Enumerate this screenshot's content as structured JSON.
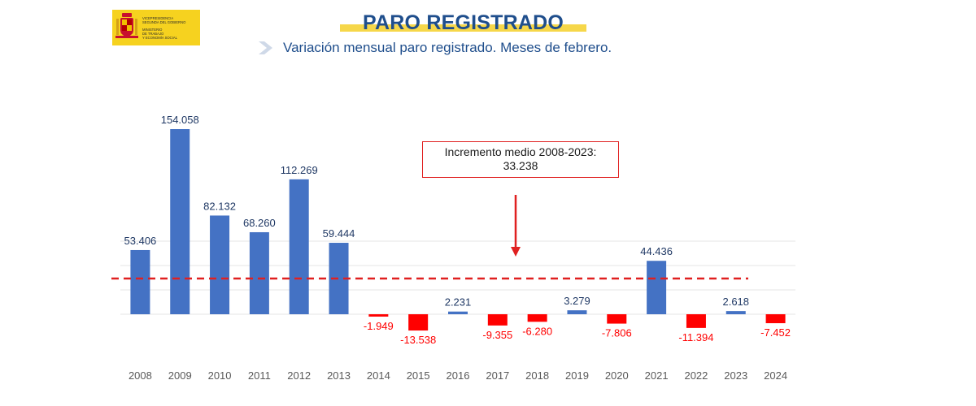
{
  "header": {
    "title": "PARO REGISTRADO",
    "subtitle": "Variación mensual paro registrado. Meses de febrero."
  },
  "logo": {
    "lines": [
      "VICEPRESIDENCIA",
      "SEGUNDA DEL GOBIERNO",
      "MINISTERIO",
      "DE TRABAJO",
      "Y ECONOMÍA SOCIAL"
    ]
  },
  "annotation": {
    "line1": "Incremento medio 2008-2023:",
    "line2": "33.238"
  },
  "colors": {
    "positive": "#4472c4",
    "negative": "#ff0000",
    "title": "#1f4e8c",
    "average_line": "#e02020"
  },
  "chart_data": {
    "type": "bar",
    "categories": [
      "2008",
      "2009",
      "2010",
      "2011",
      "2012",
      "2013",
      "2014",
      "2015",
      "2016",
      "2017",
      "2018",
      "2019",
      "2020",
      "2021",
      "2022",
      "2023",
      "2024"
    ],
    "values": [
      53406,
      154058,
      82132,
      68260,
      112269,
      59444,
      -1949,
      -13538,
      2231,
      -9355,
      -6280,
      3279,
      -7806,
      44436,
      -11394,
      2618,
      -7452
    ],
    "labels": [
      "53.406",
      "154.058",
      "82.132",
      "68.260",
      "112.269",
      "59.444",
      "-1.949",
      "-13.538",
      "2.231",
      "-9.355",
      "-6.280",
      "3.279",
      "-7.806",
      "44.436",
      "-11.394",
      "2.618",
      "-7.452"
    ],
    "average": 33238,
    "ylim": [
      -20000,
      160000
    ],
    "grid": true,
    "legend": "none"
  }
}
